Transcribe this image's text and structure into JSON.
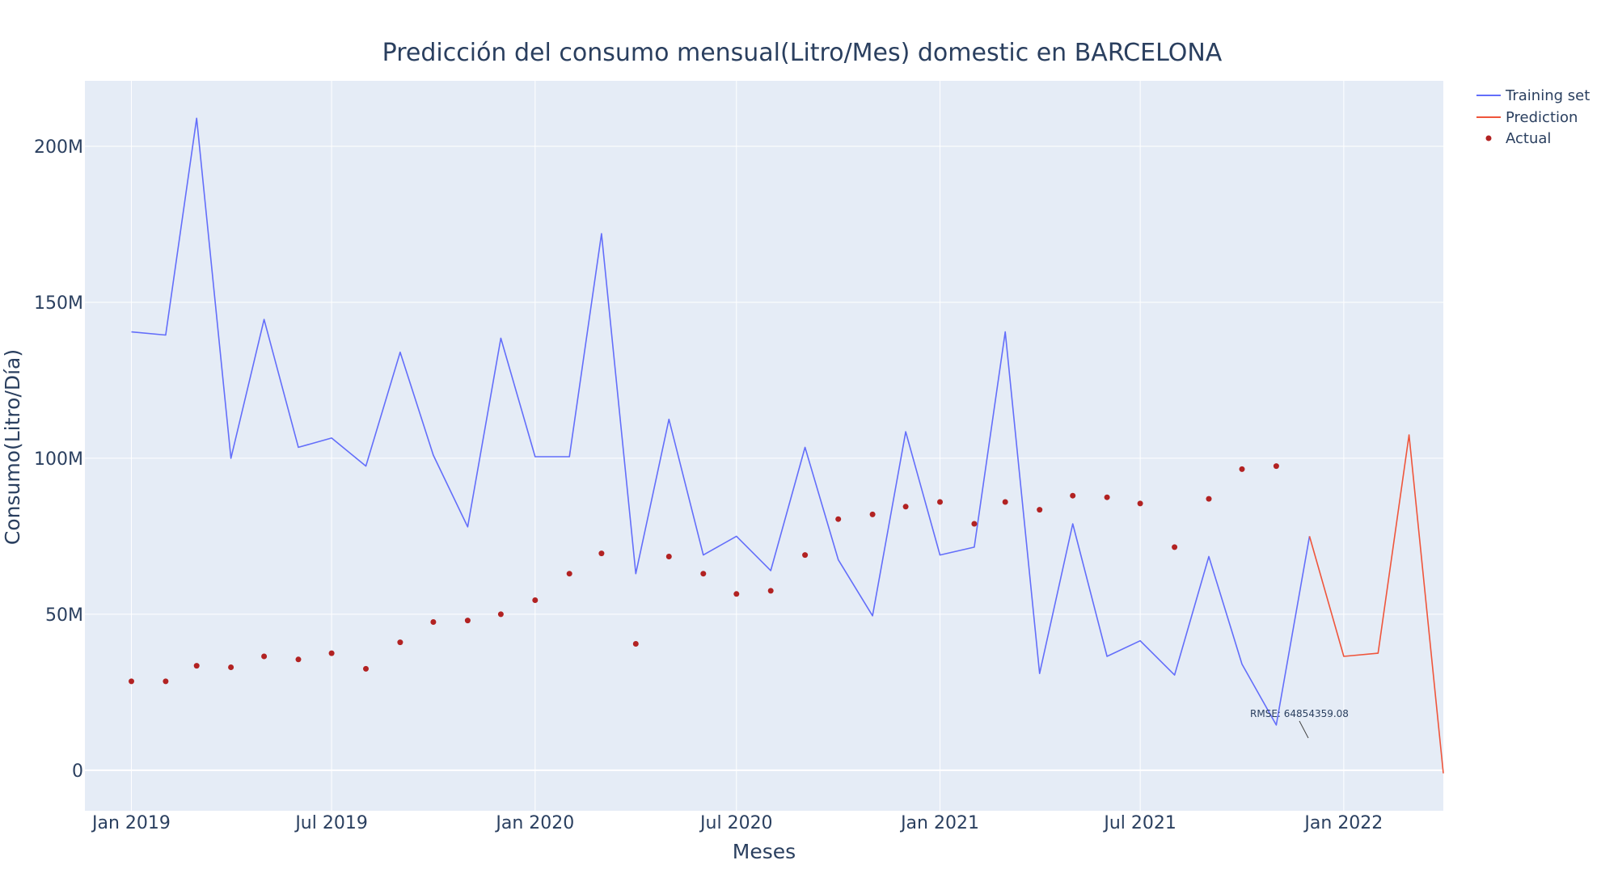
{
  "chart_data": {
    "type": "line",
    "title": "Predicción del consumo mensual(Litro/Mes) domestic en BARCELONA",
    "xlabel": "Meses",
    "ylabel": "Consumo(Litro/Día)",
    "x_tick_labels": [
      "Jan 2019",
      "Jul 2019",
      "Jan 2020",
      "Jul 2020",
      "Jan 2021",
      "Jul 2021",
      "Jan 2022"
    ],
    "y_tick_labels": [
      "0",
      "50M",
      "100M",
      "150M",
      "200M"
    ],
    "y_tick_values": [
      0,
      50000000,
      100000000,
      150000000,
      200000000
    ],
    "xlim": [
      "2018-11-20",
      "2022-04-01"
    ],
    "ylim": [
      -13000000,
      221000000
    ],
    "grid": true,
    "legend_position": "top-right",
    "annotation": "RMSE: 64854359.08",
    "series": [
      {
        "name": "Training set",
        "mode": "lines",
        "color": "#636efa",
        "x": [
          "2019-01-01",
          "2019-02-01",
          "2019-03-01",
          "2019-04-01",
          "2019-05-01",
          "2019-06-01",
          "2019-07-01",
          "2019-08-01",
          "2019-09-01",
          "2019-10-01",
          "2019-11-01",
          "2019-12-01",
          "2020-01-01",
          "2020-02-01",
          "2020-03-01",
          "2020-04-01",
          "2020-05-01",
          "2020-06-01",
          "2020-07-01",
          "2020-08-01",
          "2020-09-01",
          "2020-10-01",
          "2020-11-01",
          "2020-12-01",
          "2021-01-01",
          "2021-02-01",
          "2021-03-01",
          "2021-04-01",
          "2021-05-01",
          "2021-06-01",
          "2021-07-01",
          "2021-08-01",
          "2021-09-01",
          "2021-10-01",
          "2021-11-01",
          "2021-12-01"
        ],
        "y": [
          140500000,
          139500000,
          209000000,
          100000000,
          144500000,
          103500000,
          106500000,
          97500000,
          134000000,
          101000000,
          78000000,
          138500000,
          100500000,
          100500000,
          172000000,
          63000000,
          112500000,
          69000000,
          75000000,
          64000000,
          103500000,
          67500000,
          49500000,
          108500000,
          69000000,
          71500000,
          140500000,
          31000000,
          79000000,
          36500000,
          41500000,
          30500000,
          68500000,
          34000000,
          14500000,
          75000000
        ]
      },
      {
        "name": "Prediction",
        "mode": "lines",
        "color": "#ef553b",
        "x": [
          "2021-12-01",
          "2022-01-01",
          "2022-02-01",
          "2022-03-01",
          "2022-04-01"
        ],
        "y": [
          75000000,
          36500000,
          37500000,
          107500000,
          -1000000
        ]
      },
      {
        "name": "Actual",
        "mode": "markers",
        "color": "#b22222",
        "x": [
          "2019-01-01",
          "2019-02-01",
          "2019-03-01",
          "2019-04-01",
          "2019-05-01",
          "2019-06-01",
          "2019-07-01",
          "2019-08-01",
          "2019-09-01",
          "2019-10-01",
          "2019-11-01",
          "2019-12-01",
          "2020-01-01",
          "2020-02-01",
          "2020-03-01",
          "2020-04-01",
          "2020-05-01",
          "2020-06-01",
          "2020-07-01",
          "2020-08-01",
          "2020-09-01",
          "2020-10-01",
          "2020-11-01",
          "2020-12-01",
          "2021-01-01",
          "2021-02-01",
          "2021-03-01",
          "2021-04-01",
          "2021-05-01",
          "2021-06-01",
          "2021-07-01",
          "2021-08-01",
          "2021-09-01",
          "2021-10-01",
          "2021-11-01"
        ],
        "y": [
          28500000,
          28500000,
          33500000,
          33000000,
          36500000,
          35500000,
          37500000,
          32500000,
          41000000,
          47500000,
          48000000,
          50000000,
          54500000,
          63000000,
          69500000,
          40500000,
          68500000,
          63000000,
          56500000,
          57500000,
          69000000,
          80500000,
          82000000,
          84500000,
          86000000,
          79000000,
          86000000,
          83500000,
          88000000,
          87500000,
          85500000,
          71500000,
          87000000,
          96500000,
          97500000
        ]
      }
    ]
  }
}
